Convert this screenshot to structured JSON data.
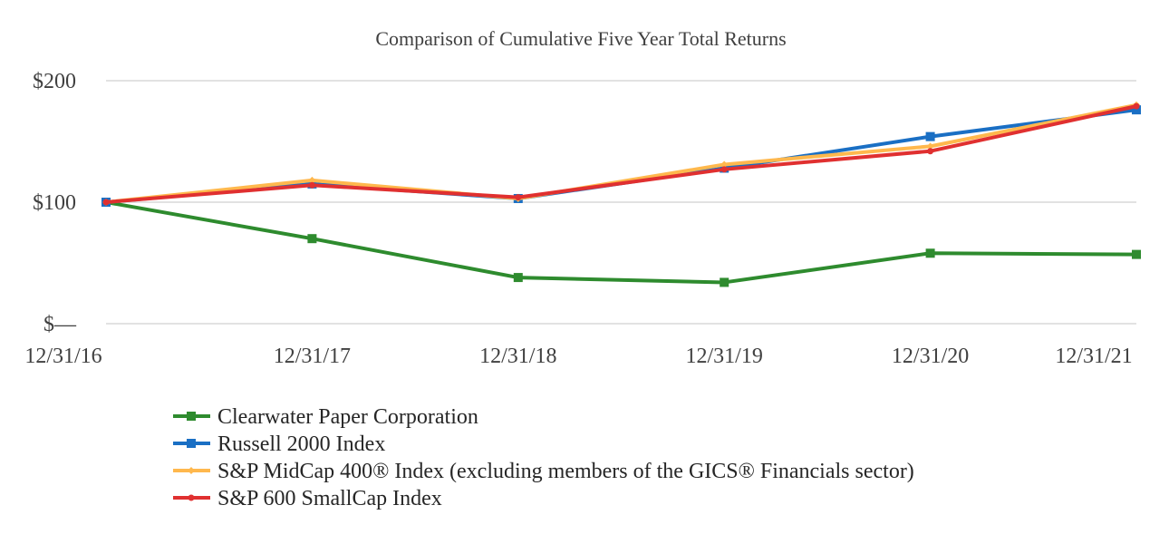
{
  "chart_data": {
    "type": "line",
    "title": "Comparison of Cumulative Five Year Total Returns",
    "xlabel": "",
    "ylabel": "",
    "categories": [
      "12/31/16",
      "12/31/17",
      "12/31/18",
      "12/31/19",
      "12/31/20",
      "12/31/21"
    ],
    "ylim": [
      0,
      200
    ],
    "y_ticks": [
      {
        "value": 0,
        "label": "$—"
      },
      {
        "value": 100,
        "label": "$100"
      },
      {
        "value": 200,
        "label": "$200"
      }
    ],
    "grid": true,
    "legend_position": "bottom",
    "series": [
      {
        "name": "Clearwater Paper Corporation",
        "color": "#2e8b2e",
        "marker": "square",
        "values": [
          100,
          70,
          38,
          34,
          58,
          57
        ]
      },
      {
        "name": "Russell 2000 Index",
        "color": "#1a6fc4",
        "marker": "square",
        "values": [
          100,
          115,
          103,
          128,
          154,
          176
        ]
      },
      {
        "name": "S&P MidCap 400® Index (excluding members of the GICS® Financials sector)",
        "color": "#ffb84d",
        "marker": "diamond",
        "values": [
          100,
          118,
          103,
          131,
          146,
          180
        ]
      },
      {
        "name": "S&P 600 SmallCap Index",
        "color": "#e03030",
        "marker": "circle",
        "values": [
          100,
          114,
          104,
          127,
          142,
          179
        ]
      }
    ]
  }
}
